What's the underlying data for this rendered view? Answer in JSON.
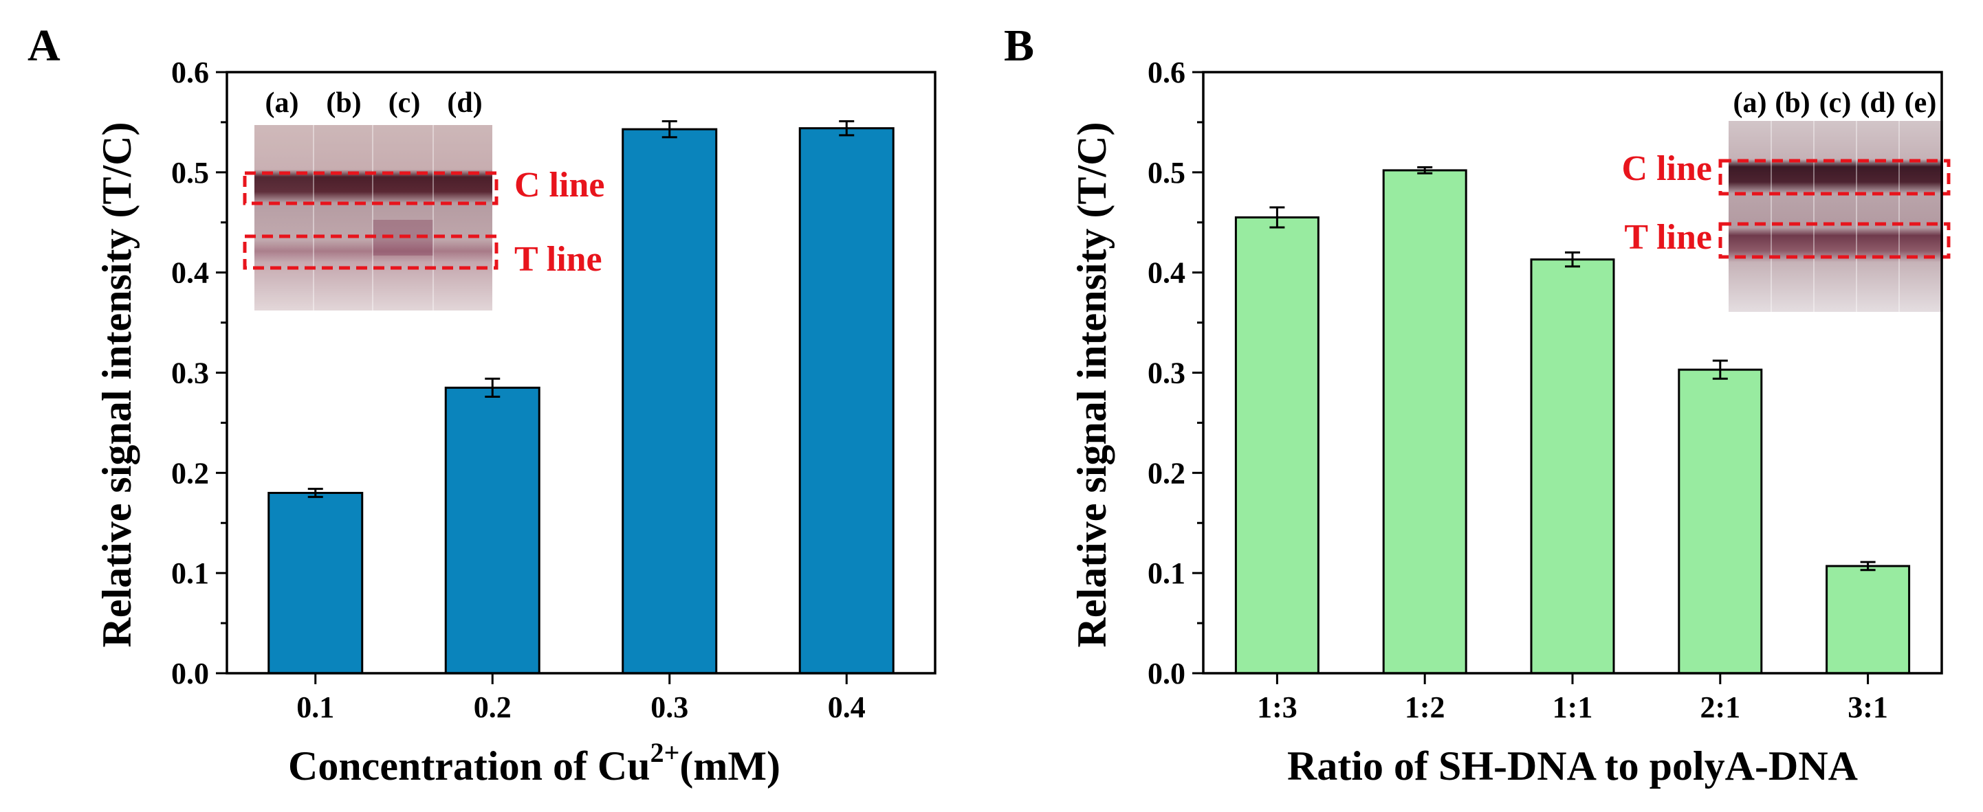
{
  "chart_data": [
    {
      "panel": "A",
      "type": "bar",
      "categories": [
        "0.1",
        "0.2",
        "0.3",
        "0.4"
      ],
      "values": [
        0.18,
        0.285,
        0.543,
        0.544
      ],
      "errors": [
        0.004,
        0.009,
        0.008,
        0.007
      ],
      "xlabel_main": "Concentration of Cu",
      "xlabel_sup": "2+",
      "xlabel_tail": "(mM)",
      "ylabel": "Relative signal intensity (T/C)",
      "ylim": [
        0,
        0.6
      ],
      "yticks": [
        "0.0",
        "0.1",
        "0.2",
        "0.3",
        "0.4",
        "0.5",
        "0.6"
      ],
      "color": "#0a84bc",
      "inset": {
        "lanes": [
          "(a)",
          "(b)",
          "(c)",
          "(d)"
        ],
        "c_label": "C line",
        "t_label": "T line"
      }
    },
    {
      "panel": "B",
      "type": "bar",
      "categories": [
        "1:3",
        "1:2",
        "1:1",
        "2:1",
        "3:1"
      ],
      "values": [
        0.455,
        0.502,
        0.413,
        0.303,
        0.107
      ],
      "errors": [
        0.01,
        0.003,
        0.007,
        0.009,
        0.004
      ],
      "xlabel": "Ratio of SH-DNA to polyA-DNA",
      "ylabel": "Relative signal intensity (T/C)",
      "ylim": [
        0,
        0.6
      ],
      "yticks": [
        "0.0",
        "0.1",
        "0.2",
        "0.3",
        "0.4",
        "0.5",
        "0.6"
      ],
      "color": "#98eba0",
      "inset": {
        "lanes": [
          "(a)",
          "(b)",
          "(c)",
          "(d)",
          "(e)"
        ],
        "c_label": "C line",
        "t_label": "T line"
      }
    }
  ]
}
